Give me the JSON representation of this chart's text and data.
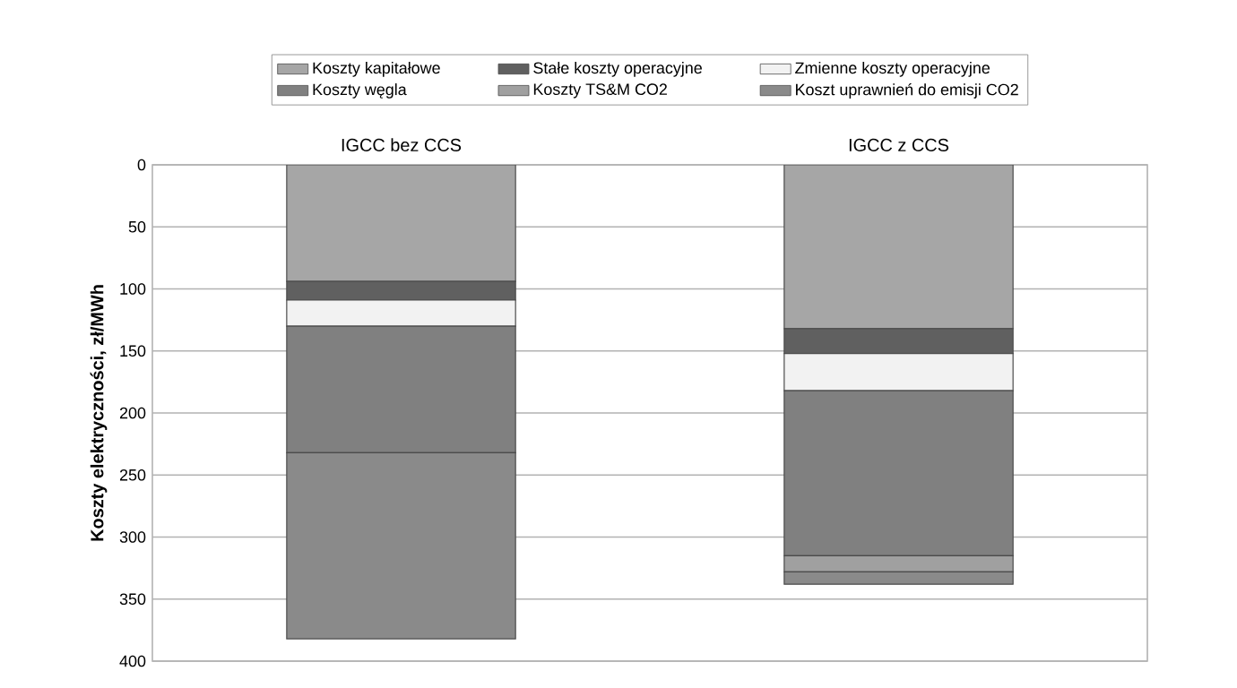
{
  "chart_data": {
    "type": "bar",
    "stacked": true,
    "ylabel": "Koszty elektryczności, zł/MWh",
    "categories": [
      "IGCC bez CCS",
      "IGCC z CCS"
    ],
    "series": [
      {
        "name": "Koszty kapitałowe",
        "color": "#a6a6a6",
        "values": [
          94,
          132
        ]
      },
      {
        "name": "Stałe koszty operacyjne",
        "color": "#606060",
        "values": [
          15,
          20
        ]
      },
      {
        "name": "Zmienne koszty operacyjne",
        "color": "#f2f2f2",
        "values": [
          21,
          30
        ]
      },
      {
        "name": "Koszty węgla",
        "color": "#808080",
        "values": [
          102,
          133
        ]
      },
      {
        "name": "Koszty TS&M CO2",
        "color": "#a0a0a0",
        "values": [
          null,
          13
        ]
      },
      {
        "name": "Koszt uprawnień do emisji CO2",
        "color": "#8a8a8a",
        "values": [
          150,
          10
        ]
      }
    ],
    "ylim": [
      400,
      0
    ],
    "yticks": [
      0,
      50,
      100,
      150,
      200,
      250,
      300,
      350,
      400
    ],
    "grid": "y",
    "legend": "top"
  }
}
